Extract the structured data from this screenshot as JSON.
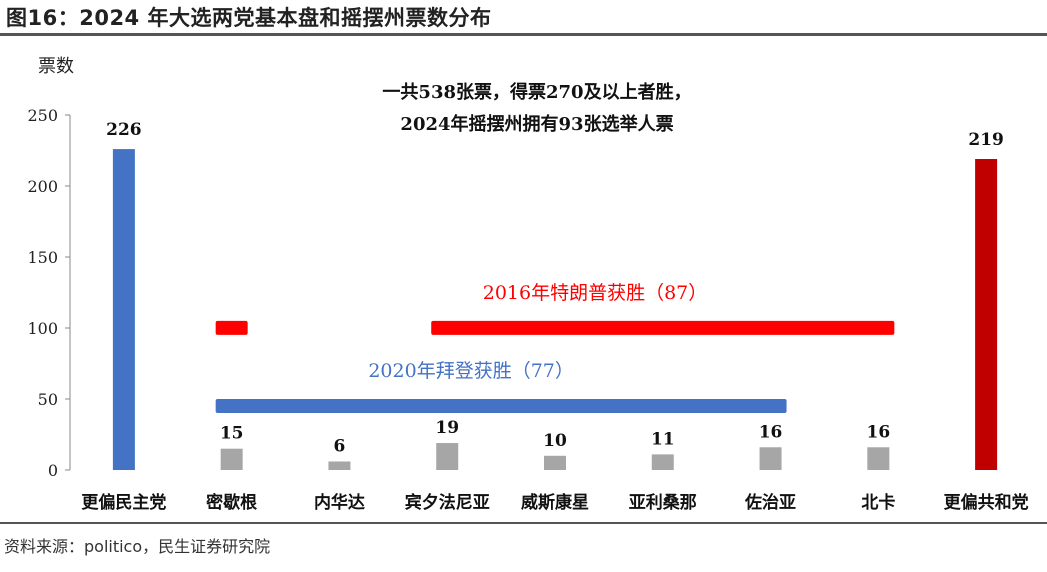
{
  "figure": {
    "title": "图16：2024 年大选两党基本盘和摇摆州票数分布",
    "source": "资料来源：politico，民生证券研究院"
  },
  "chart_data": {
    "type": "bar",
    "ylabel": "票数",
    "ylim": [
      0,
      250
    ],
    "yticks": [
      0,
      50,
      100,
      150,
      200,
      250
    ],
    "categories": [
      "更偏民主党",
      "密歇根",
      "内华达",
      "宾夕法尼亚",
      "威斯康星",
      "亚利桑那",
      "佐治亚",
      "北卡",
      "更偏共和党"
    ],
    "values": [
      226,
      15,
      6,
      19,
      10,
      11,
      16,
      16,
      219
    ],
    "bar_colors": [
      "#4472C4",
      "#A6A6A6",
      "#A6A6A6",
      "#A6A6A6",
      "#A6A6A6",
      "#A6A6A6",
      "#A6A6A6",
      "#A6A6A6",
      "#C00000"
    ],
    "annotation_lines": [
      "一共538张票，得票270及以上者胜，",
      "2024年摇摆州拥有93张选举人票"
    ],
    "ranges": [
      {
        "label": "2016年特朗普获胜（87）",
        "value": 105,
        "color": "#FF0000",
        "segments": [
          [
            "密歇根",
            "密歇根"
          ],
          [
            "宾夕法尼亚",
            "北卡"
          ]
        ]
      },
      {
        "label": "2020年拜登获胜（77）",
        "value": 50,
        "color": "#4472C4",
        "segments": [
          [
            "密歇根",
            "佐治亚"
          ]
        ]
      }
    ]
  }
}
